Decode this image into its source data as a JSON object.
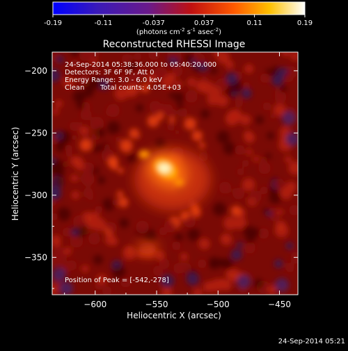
{
  "footer_timestamp": "24-Sep-2014 05:21",
  "colorbar": {
    "ticks": [
      "-0.19",
      "-0.11",
      "-0.037",
      "0.037",
      "0.11",
      "0.19"
    ],
    "units_main": "(photons cm",
    "units_sup1": "-2",
    "units_mid": " s",
    "units_sup2": "-1",
    "units_mid2": " asec",
    "units_sup3": "-2",
    "units_end": ")",
    "range": [
      -0.19,
      0.19
    ]
  },
  "chart_data": {
    "type": "heatmap",
    "title": "Reconstructed RHESSI Image",
    "xlabel": "Heliocentric X (arcsec)",
    "ylabel": "Heliocentric Y (arcsec)",
    "xlim": [
      -635,
      -435
    ],
    "ylim": [
      -380,
      -185
    ],
    "x_ticks": [
      -600,
      -550,
      -500,
      -450
    ],
    "y_ticks": [
      -350,
      -300,
      -250,
      -200
    ],
    "annotations": {
      "time": "24-Sep-2014 05:38:36.000 to 05:40:20.000",
      "detectors": "Detectors: 3F 6F 9F, Att 0",
      "energy": "Energy Range: 3.0 - 6.0 keV",
      "method": "Clean",
      "counts": "Total counts: 4.05E+03",
      "peak": "Position of Peak = [-542,-278]"
    },
    "peak": {
      "x": -542,
      "y": -278
    },
    "colormap": "hot",
    "grid": false
  }
}
